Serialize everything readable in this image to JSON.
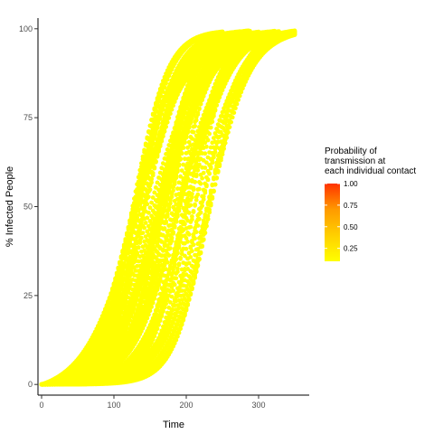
{
  "chart_data": {
    "type": "scatter",
    "title": "",
    "xlabel": "Time",
    "ylabel": "% Infected People",
    "xlim": [
      -5,
      370
    ],
    "ylim": [
      -3,
      103
    ],
    "x_ticks": [
      0,
      100,
      200,
      300
    ],
    "y_ticks": [
      0,
      25,
      50,
      75,
      100
    ],
    "grid": false,
    "point_color": "#FFFF00",
    "legend": {
      "title_lines": [
        "Probability of",
        "transmission at",
        "each individual contact"
      ],
      "placement": "right",
      "ticks": [
        "1.00",
        "0.75",
        "0.50",
        "0.25"
      ],
      "tick_values": [
        1.0,
        0.75,
        0.5,
        0.25
      ],
      "range": [
        0.1,
        1.0
      ],
      "colors": [
        "#FFFF00",
        "#FFD000",
        "#FF9A00",
        "#FF3300"
      ]
    },
    "series_envelope": {
      "description_free": true,
      "min_midpoint": 125,
      "max_midpoint": 235,
      "min_steepness": 0.028,
      "max_steepness": 0.045,
      "x_end_min": 230,
      "x_end_max": 350,
      "count": 70
    }
  }
}
